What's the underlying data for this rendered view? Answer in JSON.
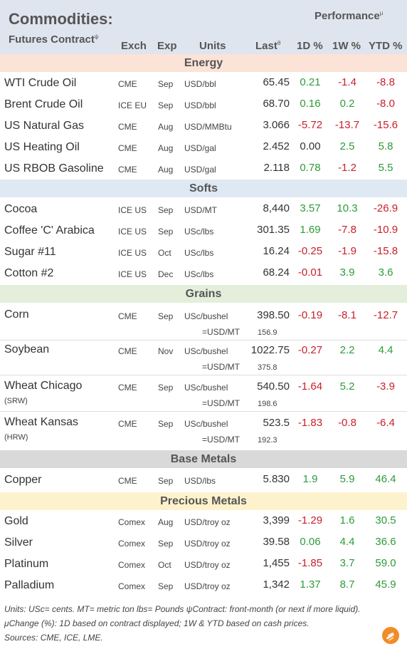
{
  "header": {
    "title": "Commodities:",
    "subtitle": "Futures Contract",
    "subtitle_sup": "ψ",
    "performance": "Performance",
    "performance_sup": "μ",
    "col_exch": "Exch",
    "col_exp": "Exp",
    "col_units": "Units",
    "col_last": "Last",
    "col_last_sup": "θ",
    "col_1d": "1D %",
    "col_1w": "1W %",
    "col_ytd": "YTD %"
  },
  "sections": [
    {
      "label": "Energy",
      "bg": "#fbe3d8",
      "rows": [
        {
          "name": "WTI Crude Oil",
          "exch": "CME",
          "exp": "Sep",
          "units": "USD/bbl",
          "last": "65.45",
          "d1": "0.21",
          "w1": "-1.4",
          "ytd": "-8.8"
        },
        {
          "name": "Brent Crude Oil",
          "exch": "ICE EU",
          "exp": "Sep",
          "units": "USD/bbl",
          "last": "68.70",
          "d1": "0.16",
          "w1": "0.2",
          "ytd": "-8.0"
        },
        {
          "name": "US Natural Gas",
          "exch": "CME",
          "exp": "Aug",
          "units": "USD/MMBtu",
          "last": "3.066",
          "d1": "-5.72",
          "w1": "-13.7",
          "ytd": "-15.6"
        },
        {
          "name": "US Heating Oil",
          "exch": "CME",
          "exp": "Aug",
          "units": "USD/gal",
          "last": "2.452",
          "d1": "0.00",
          "w1": "2.5",
          "ytd": "5.8"
        },
        {
          "name": "US RBOB Gasoline",
          "exch": "CME",
          "exp": "Aug",
          "units": "USD/gal",
          "last": "2.118",
          "d1": "0.78",
          "w1": "-1.2",
          "ytd": "5.5"
        }
      ]
    },
    {
      "label": "Softs",
      "bg": "#dfe9f3",
      "rows": [
        {
          "name": "Cocoa",
          "exch": "ICE US",
          "exp": "Sep",
          "units": "USD/MT",
          "last": "8,440",
          "d1": "3.57",
          "w1": "10.3",
          "ytd": "-26.9"
        },
        {
          "name": "Coffee 'C' Arabica",
          "exch": "ICE US",
          "exp": "Sep",
          "units": "USc/lbs",
          "last": "301.35",
          "d1": "1.69",
          "w1": "-7.8",
          "ytd": "-10.9"
        },
        {
          "name": "Sugar #11",
          "exch": "ICE US",
          "exp": "Oct",
          "units": "USc/lbs",
          "last": "16.24",
          "d1": "-0.25",
          "w1": "-1.9",
          "ytd": "-15.8"
        },
        {
          "name": "Cotton #2",
          "exch": "ICE US",
          "exp": "Dec",
          "units": "USc/lbs",
          "last": "68.24",
          "d1": "-0.01",
          "w1": "3.9",
          "ytd": "3.6"
        }
      ]
    },
    {
      "label": "Grains",
      "bg": "#e3eedb",
      "rows": [
        {
          "name": "Corn",
          "qualifier": "",
          "exch": "CME",
          "exp": "Sep",
          "units": "USc/bushel",
          "last": "398.50",
          "conv_label": "=USD/MT",
          "conv_value": "156.9",
          "d1": "-0.19",
          "w1": "-8.1",
          "ytd": "-12.7"
        },
        {
          "name": "Soybean",
          "qualifier": "",
          "exch": "CME",
          "exp": "Nov",
          "units": "USc/bushel",
          "last": "1022.75",
          "conv_label": "=USD/MT",
          "conv_value": "375.8",
          "d1": "-0.27",
          "w1": "2.2",
          "ytd": "4.4"
        },
        {
          "name": "Wheat Chicago",
          "qualifier": "(SRW)",
          "exch": "CME",
          "exp": "Sep",
          "units": "USc/bushel",
          "last": "540.50",
          "conv_label": "=USD/MT",
          "conv_value": "198.6",
          "d1": "-1.64",
          "w1": "5.2",
          "ytd": "-3.9"
        },
        {
          "name": "Wheat Kansas",
          "qualifier": "(HRW)",
          "exch": "CME",
          "exp": "Sep",
          "units": "USc/bushel",
          "last": "523.5",
          "conv_label": "=USD/MT",
          "conv_value": "192.3",
          "d1": "-1.83",
          "w1": "-0.8",
          "ytd": "-6.4"
        }
      ]
    },
    {
      "label": "Base Metals",
      "bg": "#d9d9d9",
      "rows": [
        {
          "name": "Copper",
          "exch": "CME",
          "exp": "Sep",
          "units": "USD/lbs",
          "last": "5.830",
          "d1": "1.9",
          "w1": "5.9",
          "ytd": "46.4"
        }
      ]
    },
    {
      "label": "Precious Metals",
      "bg": "#fdf2cc",
      "rows": [
        {
          "name": "Gold",
          "exch": "Comex",
          "exp": "Aug",
          "units": "USD/troy oz",
          "last": "3,399",
          "d1": "-1.29",
          "w1": "1.6",
          "ytd": "30.5"
        },
        {
          "name": "Silver",
          "exch": "Comex",
          "exp": "Sep",
          "units": "USD/troy oz",
          "last": "39.58",
          "d1": "0.06",
          "w1": "4.4",
          "ytd": "36.6"
        },
        {
          "name": "Platinum",
          "exch": "Comex",
          "exp": "Oct",
          "units": "USD/troy oz",
          "last": "1,455",
          "d1": "-1.85",
          "w1": "3.7",
          "ytd": "59.0"
        },
        {
          "name": "Palladium",
          "exch": "Comex",
          "exp": "Sep",
          "units": "USD/troy oz",
          "last": "1,342",
          "d1": "1.37",
          "w1": "8.7",
          "ytd": "45.9"
        }
      ]
    }
  ],
  "footer": {
    "line1": "Units: USc= cents.   MT= metric ton   lbs= Pounds  ψContract: front-month (or next if more liquid).",
    "line2": "μChange (%): 1D based on contract displayed; 1W & YTD based on cash prices.",
    "line3": "Sources: CME, ICE, LME."
  },
  "colors": {
    "positive": "#2e9b3a",
    "negative": "#c8202b",
    "header_bg": "#dfe5ee",
    "logo": "#f28c28"
  },
  "icons": {
    "logo": "flame-logo-icon"
  }
}
